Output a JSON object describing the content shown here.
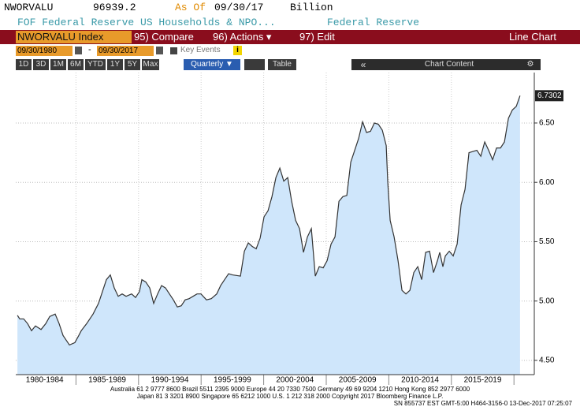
{
  "header": {
    "ticker": "NWORVALU",
    "last_price": "96939.2",
    "as_of_label": "As Of",
    "as_of_date": "09/30/17",
    "units": "Billion",
    "description": "FOF Federal Reserve US Households & NPO...",
    "source": "Federal Reserve"
  },
  "toolbar": {
    "security": "NWORVALU Index",
    "compare": "95) Compare",
    "actions": "96) Actions ▾",
    "edit": "97) Edit",
    "view": "Line Chart"
  },
  "dates": {
    "start": "09/30/1980",
    "separator": "-",
    "end": "09/30/2017",
    "key_events": "Key Events",
    "info": "i"
  },
  "range_buttons": [
    "1D",
    "3D",
    "1M",
    "6M",
    "YTD",
    "1Y",
    "5Y",
    "Max"
  ],
  "periodicity": "Quarterly ▼",
  "table_button": "Table",
  "nav_back": "«",
  "chart_content": "Chart Content",
  "settings": "⚙",
  "footer": {
    "lines": [
      "Australia 61 2 9777 8600 Brazil 5511 2395 9000 Europe 44 20 7330 7500 Germany 49 69 9204 1210 Hong Kong 852 2977 6000",
      "Japan 81 3 3201 8900       Singapore 65 6212 1000       U.S. 1 212 318 2000          Copyright 2017 Bloomberg Finance L.P.",
      "SN 855737 EST  GMT-5:00 H464-3156-0 13-Dec-2017 07:25:07"
    ]
  },
  "chart_data": {
    "type": "area",
    "fill": "#cfe6fb",
    "color": "#333333",
    "grid": true,
    "x_period_labels": [
      "1980-1984",
      "1985-1989",
      "1990-1994",
      "1995-1999",
      "2000-2004",
      "2005-2009",
      "2010-2014",
      "2015-2019"
    ],
    "xlim": [
      1980.63,
      2018.8
    ],
    "ylim": [
      4.38,
      6.925
    ],
    "yticks": [
      {
        "value": 4.5,
        "label": "4.50"
      },
      {
        "value": 5,
        "label": "5.00"
      },
      {
        "value": 5.5,
        "label": "5.50"
      },
      {
        "value": 6,
        "label": "6.00"
      },
      {
        "value": 6.5,
        "label": "6.50"
      }
    ],
    "x": [
      1980.75,
      1980.92,
      1981.21,
      1981.5,
      1981.79,
      1982.08,
      1982.49,
      1982.84,
      1983.13,
      1983.53,
      1983.82,
      1984.11,
      1984.58,
      1984.98,
      1985.27,
      1985.45,
      1985.85,
      1986.32,
      1986.72,
      1987.01,
      1987.3,
      1987.59,
      1987.88,
      1988.17,
      1988.46,
      1988.75,
      1989.16,
      1989.45,
      1989.74,
      1989.91,
      1990.2,
      1990.49,
      1990.78,
      1991.07,
      1991.36,
      1991.65,
      1991.94,
      1992.23,
      1992.52,
      1992.81,
      1993.1,
      1993.39,
      1993.68,
      1993.97,
      1994.26,
      1994.67,
      1995.02,
      1995.42,
      1995.71,
      1996.0,
      1996.3,
      1996.59,
      1997.17,
      1997.46,
      1997.75,
      1998.04,
      1998.33,
      1998.62,
      1998.91,
      1999.2,
      1999.49,
      1999.78,
      2000.07,
      2000.36,
      2000.65,
      2000.94,
      2001.23,
      2001.52,
      2001.81,
      2002.1,
      2002.39,
      2002.68,
      2002.97,
      2003.26,
      2003.55,
      2003.84,
      2004.13,
      2004.42,
      2004.71,
      2005.0,
      2005.29,
      2005.58,
      2005.87,
      2006.16,
      2006.45,
      2006.74,
      2007.03,
      2007.32,
      2007.61,
      2007.9,
      2008.01,
      2008.19,
      2008.48,
      2008.77,
      2009.06,
      2009.35,
      2009.64,
      2009.93,
      2010.22,
      2010.51,
      2010.8,
      2011.09,
      2011.38,
      2011.67,
      2011.84,
      2012.07,
      2012.25,
      2012.54,
      2012.83,
      2013.12,
      2013.41,
      2013.7,
      2013.99,
      2014.28,
      2014.57,
      2014.86,
      2015.15,
      2015.44,
      2015.73,
      2016.02,
      2016.31,
      2016.6,
      2016.9,
      2017.19,
      2017.47,
      2017.75
    ],
    "values": [
      4.88,
      4.85,
      4.85,
      4.81,
      4.75,
      4.79,
      4.76,
      4.81,
      4.87,
      4.89,
      4.81,
      4.71,
      4.63,
      4.65,
      4.71,
      4.75,
      4.81,
      4.89,
      4.98,
      5.08,
      5.18,
      5.22,
      5.11,
      5.04,
      5.06,
      5.04,
      5.06,
      5.03,
      5.08,
      5.18,
      5.16,
      5.11,
      4.98,
      5.06,
      5.13,
      5.11,
      5.06,
      5.01,
      4.95,
      4.96,
      5.01,
      5.02,
      5.04,
      5.06,
      5.06,
      5.01,
      5.02,
      5.06,
      5.13,
      5.18,
      5.23,
      5.22,
      5.21,
      5.42,
      5.49,
      5.46,
      5.44,
      5.53,
      5.71,
      5.76,
      5.88,
      6.04,
      6.12,
      6.01,
      6.04,
      5.84,
      5.68,
      5.61,
      5.41,
      5.54,
      5.61,
      5.21,
      5.29,
      5.28,
      5.34,
      5.48,
      5.54,
      5.84,
      5.88,
      5.89,
      6.17,
      6.27,
      6.37,
      6.51,
      6.42,
      6.43,
      6.5,
      6.49,
      6.44,
      6.31,
      6.01,
      5.68,
      5.54,
      5.34,
      5.09,
      5.06,
      5.09,
      5.24,
      5.29,
      5.18,
      5.41,
      5.42,
      5.24,
      5.34,
      5.41,
      5.29,
      5.38,
      5.42,
      5.38,
      5.48,
      5.81,
      5.94,
      6.25,
      6.26,
      6.27,
      6.22,
      6.34,
      6.27,
      6.19,
      6.29,
      6.29,
      6.34,
      6.54,
      6.61,
      6.64,
      6.7302
    ]
  }
}
